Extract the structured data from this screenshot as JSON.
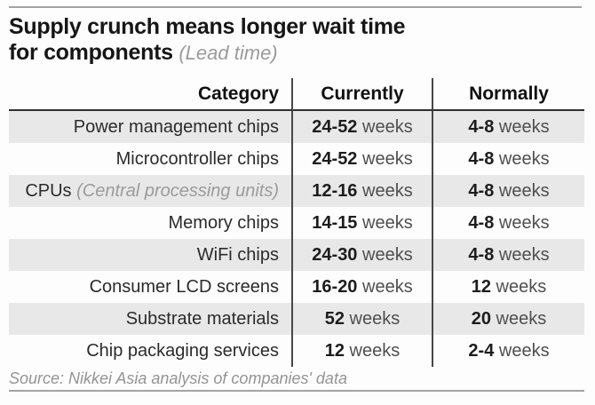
{
  "title": {
    "line1": "Supply crunch means longer wait time",
    "line2": "for components",
    "subtitle": "(Lead time)"
  },
  "table": {
    "headers": [
      "Category",
      "Currently",
      "Normally"
    ],
    "unit": "weeks",
    "rows": [
      {
        "category": "Power management chips",
        "note": "",
        "currently": "24-52",
        "normally": "4-8"
      },
      {
        "category": "Microcontroller chips",
        "note": "",
        "currently": "24-52",
        "normally": "4-8"
      },
      {
        "category": "CPUs",
        "note": "(Central processing units)",
        "currently": "12-16",
        "normally": "4-8"
      },
      {
        "category": "Memory chips",
        "note": "",
        "currently": "14-15",
        "normally": "4-8"
      },
      {
        "category": "WiFi chips",
        "note": "",
        "currently": "24-30",
        "normally": "4-8"
      },
      {
        "category": "Consumer LCD screens",
        "note": "",
        "currently": "16-20",
        "normally": "12"
      },
      {
        "category": "Substrate materials",
        "note": "",
        "currently": "52",
        "normally": "20"
      },
      {
        "category": "Chip packaging services",
        "note": "",
        "currently": "12",
        "normally": "2-4"
      }
    ]
  },
  "source": "Source: Nikkei Asia analysis of companies' data",
  "colors": {
    "row_stripe": "#e8e8e8",
    "column_divider": "#474747",
    "header_underline": "#2f2f2f",
    "frame_rule": "#a3a3a3",
    "muted_text": "#9b9b9b"
  },
  "chart_data": {
    "type": "table",
    "title": "Supply crunch means longer wait time for components",
    "subtitle": "(Lead time)",
    "columns": [
      "Category",
      "Currently",
      "Normally"
    ],
    "rows": [
      [
        "Power management chips",
        "24-52 weeks",
        "4-8 weeks"
      ],
      [
        "Microcontroller chips",
        "24-52 weeks",
        "4-8 weeks"
      ],
      [
        "CPUs (Central processing units)",
        "12-16 weeks",
        "4-8 weeks"
      ],
      [
        "Memory chips",
        "14-15 weeks",
        "4-8 weeks"
      ],
      [
        "WiFi chips",
        "24-30 weeks",
        "4-8 weeks"
      ],
      [
        "Consumer LCD screens",
        "16-20 weeks",
        "12 weeks"
      ],
      [
        "Substrate materials",
        "52 weeks",
        "20 weeks"
      ],
      [
        "Chip packaging services",
        "12 weeks",
        "2-4 weeks"
      ]
    ],
    "source": "Source: Nikkei Asia analysis of companies' data",
    "layout": {
      "stripes": true,
      "category_align": "right",
      "value_align": "center"
    }
  }
}
